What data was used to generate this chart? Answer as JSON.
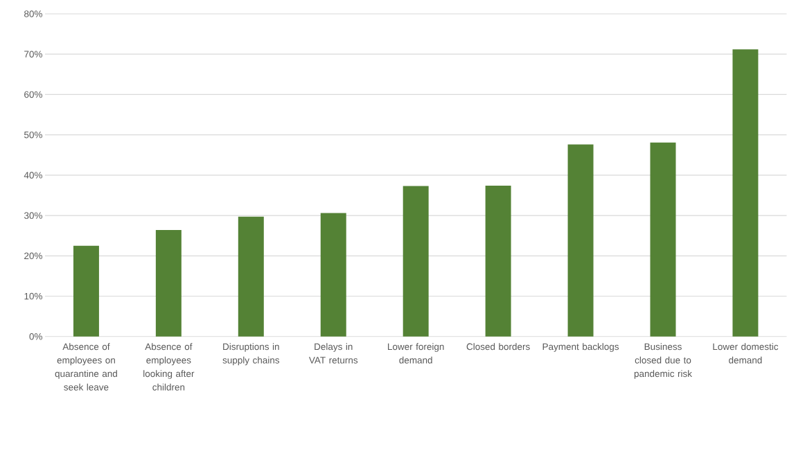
{
  "chart_data": {
    "type": "bar",
    "categories": [
      "Absence of employees on quarantine and seek leave",
      "Absence of employees looking after children",
      "Disruptions in supply chains",
      "Delays in VAT returns",
      "Lower foreign demand",
      "Closed borders",
      "Payment backlogs",
      "Business closed due to pandemic risk",
      "Lower domestic demand"
    ],
    "values": [
      22.5,
      26.4,
      29.7,
      30.6,
      37.3,
      37.4,
      47.6,
      48.1,
      71.2
    ],
    "color": "#548235",
    "ylim": [
      0,
      80
    ],
    "yticks": [
      {
        "value": 0,
        "label": "0%"
      },
      {
        "value": 10,
        "label": "10%"
      },
      {
        "value": 20,
        "label": "20%"
      },
      {
        "value": 30,
        "label": "30%"
      },
      {
        "value": 40,
        "label": "40%"
      },
      {
        "value": 50,
        "label": "50%"
      },
      {
        "value": 60,
        "label": "60%"
      },
      {
        "value": 70,
        "label": "70%"
      },
      {
        "value": 80,
        "label": "80%"
      }
    ],
    "grid": "y"
  }
}
